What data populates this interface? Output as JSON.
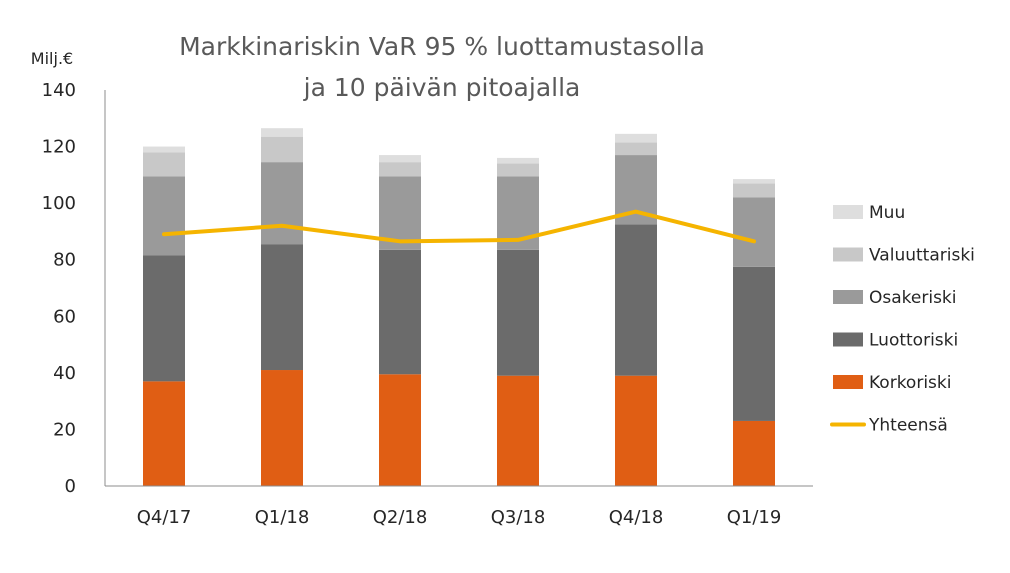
{
  "chart_data": {
    "type": "bar",
    "stacked": true,
    "title_lines": [
      "Markkinariskin VaR 95 % luottamustasolla",
      "ja 10 päivän pitoajalla"
    ],
    "ylabel": "Milj.€",
    "ylim": [
      0,
      140
    ],
    "yticks": [
      0,
      20,
      40,
      60,
      80,
      100,
      120,
      140
    ],
    "categories": [
      "Q4/17",
      "Q1/18",
      "Q2/18",
      "Q3/18",
      "Q4/18",
      "Q1/19"
    ],
    "series": [
      {
        "name": "Korkoriski",
        "color": "#E05E14",
        "values": [
          37,
          41,
          39.5,
          39,
          39,
          23
        ]
      },
      {
        "name": "Luottoriski",
        "color": "#6B6B6B",
        "values": [
          44.5,
          44.5,
          44,
          44.5,
          53.5,
          54.5
        ]
      },
      {
        "name": "Osakeriski",
        "color": "#9A9A9A",
        "values": [
          28,
          29,
          26,
          26,
          24.5,
          24.5
        ]
      },
      {
        "name": "Valuuttariski",
        "color": "#C8C8C8",
        "values": [
          8.5,
          9,
          5,
          4.5,
          4.5,
          5
        ]
      },
      {
        "name": "Muu",
        "color": "#DEDEDE",
        "values": [
          2,
          3,
          2.5,
          2,
          3,
          1.5
        ]
      }
    ],
    "line_series": {
      "name": "Yhteensä",
      "color": "#F5B400",
      "values": [
        89,
        92,
        86.5,
        87,
        97,
        86.5
      ]
    },
    "legend_order": [
      "Muu",
      "Valuuttariski",
      "Osakeriski",
      "Luottoriski",
      "Korkoriski",
      "Yhteensä"
    ],
    "legend_position": "right",
    "grid": false
  }
}
